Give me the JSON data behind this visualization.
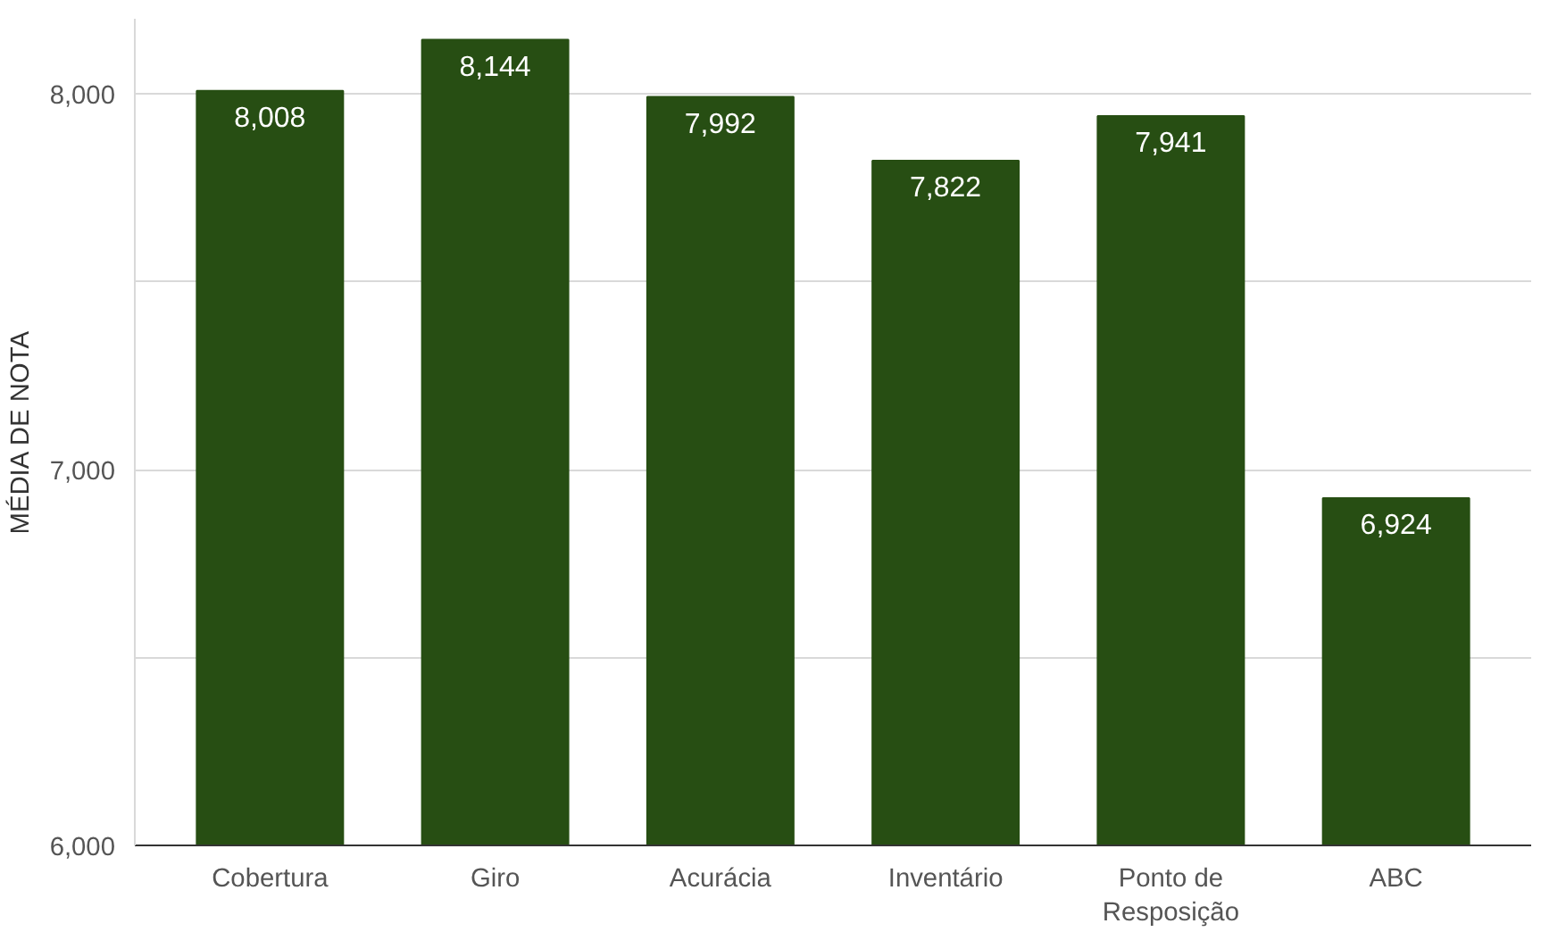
{
  "chart_data": {
    "type": "bar",
    "ylabel": "MÉDIA DE NOTA",
    "categories": [
      "Cobertura",
      "Giro",
      "Acurácia",
      "Inventário",
      "Ponto de Resposição",
      "ABC"
    ],
    "values": [
      8008,
      8144,
      7992,
      7822,
      7941,
      6924
    ],
    "value_labels": [
      "8,008",
      "8,144",
      "7,992",
      "7,822",
      "7,941",
      "6,924"
    ],
    "color": "#274e13",
    "ylim": [
      6000,
      8200
    ],
    "yticks": [
      {
        "value": 6000,
        "label": "6,000"
      },
      {
        "value": 6500,
        "label": null
      },
      {
        "value": 7000,
        "label": "7,000"
      },
      {
        "value": 7500,
        "label": null
      },
      {
        "value": 8000,
        "label": "8,000"
      }
    ],
    "grid": "y"
  }
}
